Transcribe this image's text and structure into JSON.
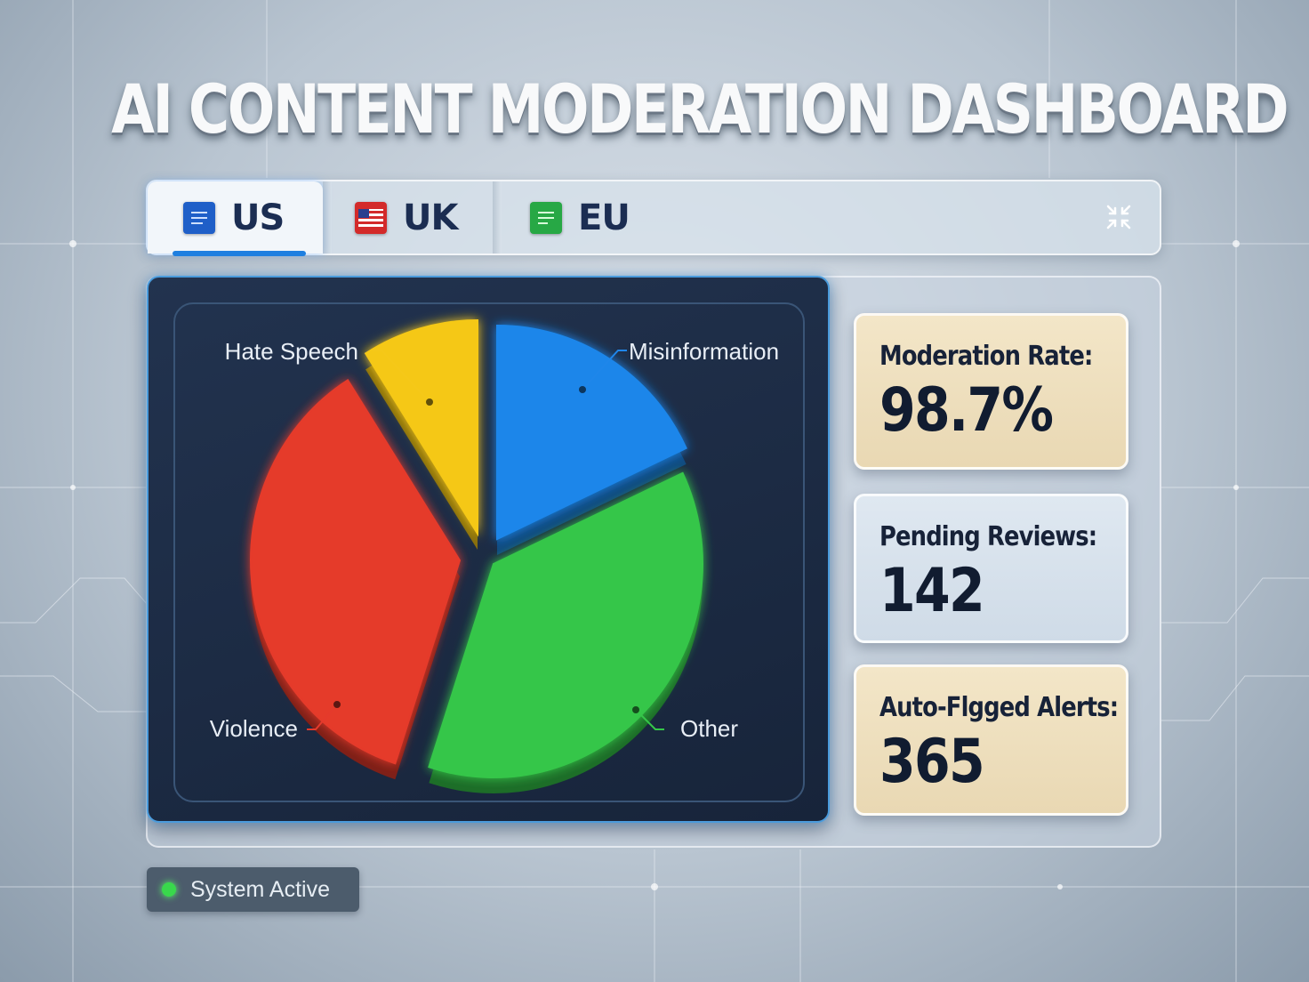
{
  "title": "AI CONTENT MODERATION DASHBOARD",
  "tabs": [
    {
      "label": "US",
      "icon": "document-flag-icon",
      "color": "#1f5fc8",
      "active": true
    },
    {
      "label": "UK",
      "icon": "us-flag-icon",
      "color": "#d32a2a",
      "active": false
    },
    {
      "label": "EU",
      "icon": "document-flag-icon",
      "color": "#27a845",
      "active": false
    }
  ],
  "collapse_icon": "collapse-icon",
  "chart_data": {
    "type": "pie",
    "style": "3d-exploded",
    "legend": "callout-labels",
    "slices": [
      {
        "label": "Misinformation",
        "value": 18,
        "color": "#1f86ea"
      },
      {
        "label": "Other",
        "value": 37,
        "color": "#35c649"
      },
      {
        "label": "Violence",
        "value": 36,
        "color": "#e53a2c"
      },
      {
        "label": "Hate Speech",
        "value": 9,
        "color": "#f5c819"
      }
    ]
  },
  "stats": {
    "moderation_rate": {
      "label": "Moderation Rate:",
      "value": "98.7%"
    },
    "pending_reviews": {
      "label": "Pending Reviews:",
      "value": "142"
    },
    "auto_flagged": {
      "label": "Auto-Flgged Alerts:",
      "value": "365"
    }
  },
  "status": {
    "text": "System Active",
    "color": "#39d84c"
  }
}
